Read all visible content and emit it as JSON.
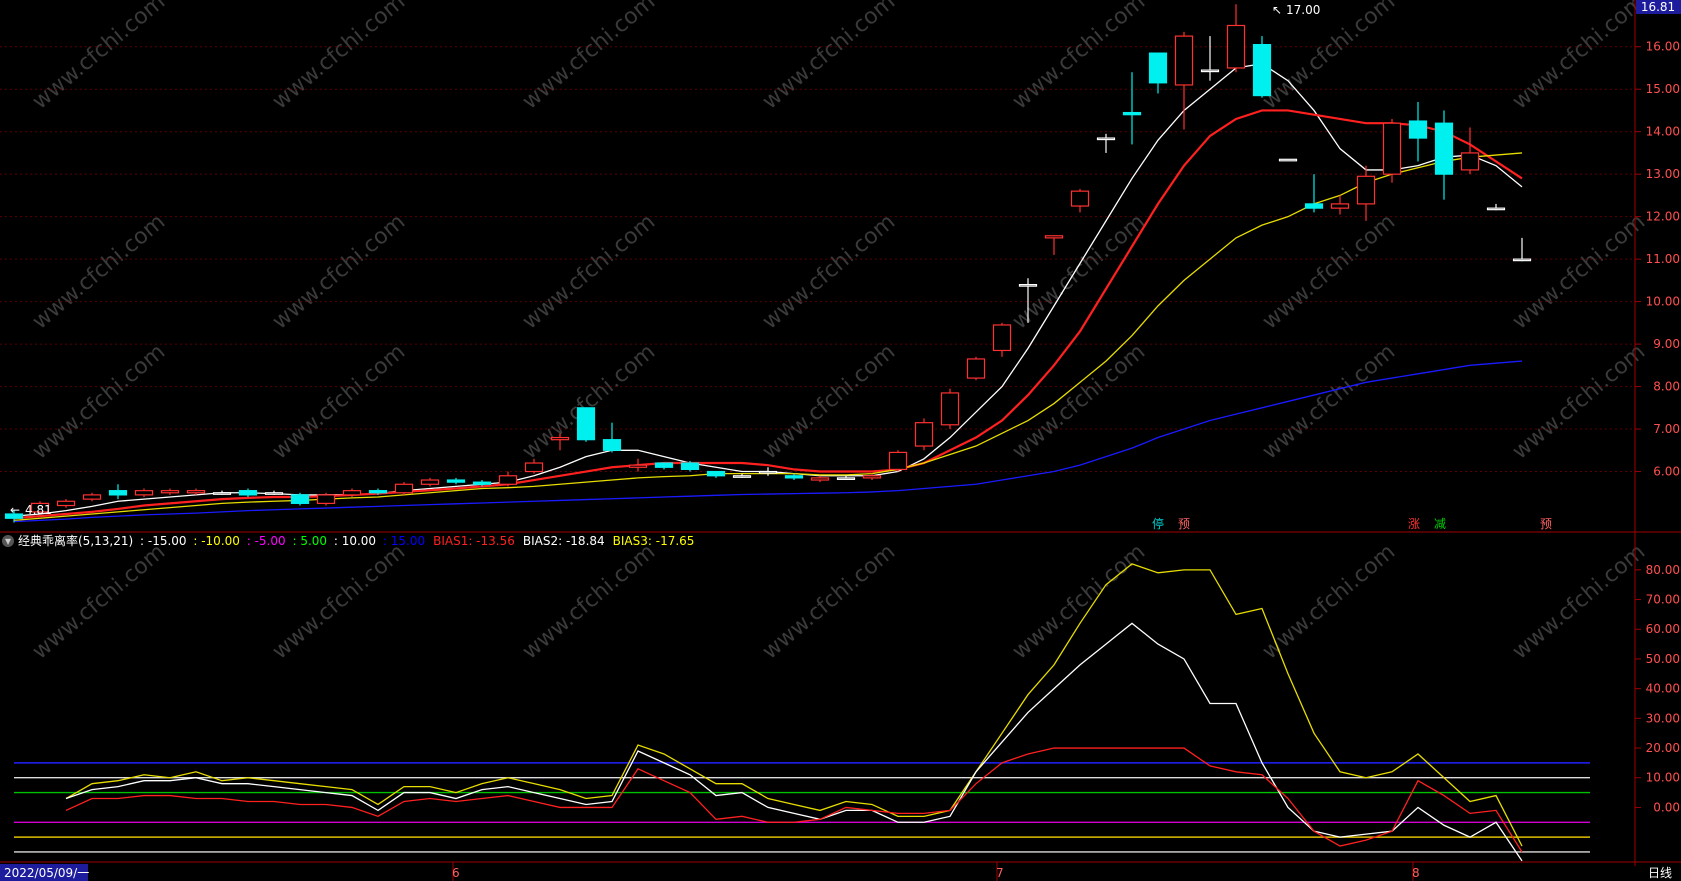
{
  "price_panel": {
    "axis_ticks": [
      "16.00",
      "15.00",
      "14.00",
      "13.00",
      "12.00",
      "11.00",
      "10.00",
      "9.00",
      "8.00",
      "7.00",
      "6.00"
    ],
    "current_price_label": "16.81",
    "high_annotation": "17.00",
    "low_annotation": "4.81",
    "signal_markers": [
      "停",
      "预",
      "涨",
      "减",
      "预"
    ]
  },
  "indicator_panel": {
    "title": "经典乖离率(5,13,21)",
    "levels_text": [
      {
        "label": ": -15.00",
        "color": "#ffffff"
      },
      {
        "label": ": -10.00",
        "color": "#ffff00"
      },
      {
        "label": ": -5.00",
        "color": "#ff00ff"
      },
      {
        "label": ": 5.00",
        "color": "#00ff00"
      },
      {
        "label": ": 10.00",
        "color": "#ffffff"
      },
      {
        "label": ": 15.00",
        "color": "#0000ff"
      }
    ],
    "bias_values": [
      {
        "label": "BIAS1: -13.56",
        "color": "#ff2020"
      },
      {
        "label": "BIAS2: -18.84",
        "color": "#ffffff"
      },
      {
        "label": "BIAS3: -17.65",
        "color": "#ffff00"
      }
    ],
    "axis_ticks": [
      "80.00",
      "70.00",
      "60.00",
      "50.00",
      "40.00",
      "30.00",
      "20.00",
      "10.00",
      "0.00"
    ]
  },
  "date_axis": {
    "start_label": "2022/05/09/一",
    "month_labels": [
      "6",
      "7",
      "8"
    ],
    "period_label": "日线"
  },
  "watermark": "www.cfchi.com",
  "chart_data": [
    {
      "type": "candlestick",
      "title": "",
      "ylim": [
        4.6,
        17.1
      ],
      "candles": [
        [
          5.0,
          4.9,
          5.1,
          4.8
        ],
        [
          5.05,
          5.25,
          5.3,
          5.0
        ],
        [
          5.2,
          5.3,
          5.35,
          5.15
        ],
        [
          5.35,
          5.45,
          5.5,
          5.3
        ],
        [
          5.55,
          5.45,
          5.7,
          5.35
        ],
        [
          5.45,
          5.55,
          5.6,
          5.4
        ],
        [
          5.5,
          5.55,
          5.6,
          5.45
        ],
        [
          5.5,
          5.55,
          5.6,
          5.45
        ],
        [
          5.5,
          5.5,
          5.55,
          5.45
        ],
        [
          5.55,
          5.45,
          5.6,
          5.4
        ],
        [
          5.5,
          5.5,
          5.55,
          5.45
        ],
        [
          5.45,
          5.25,
          5.5,
          5.2
        ],
        [
          5.25,
          5.45,
          5.5,
          5.2
        ],
        [
          5.45,
          5.55,
          5.6,
          5.4
        ],
        [
          5.55,
          5.5,
          5.6,
          5.45
        ],
        [
          5.5,
          5.7,
          5.75,
          5.45
        ],
        [
          5.7,
          5.8,
          5.85,
          5.65
        ],
        [
          5.8,
          5.75,
          5.85,
          5.7
        ],
        [
          5.75,
          5.7,
          5.8,
          5.65
        ],
        [
          5.7,
          5.9,
          6.0,
          5.65
        ],
        [
          6.0,
          6.2,
          6.3,
          5.95
        ],
        [
          6.75,
          6.8,
          6.9,
          6.5
        ],
        [
          7.5,
          6.75,
          7.5,
          6.7
        ],
        [
          6.75,
          6.5,
          7.15,
          6.45
        ],
        [
          6.1,
          6.15,
          6.3,
          6.0
        ],
        [
          6.2,
          6.1,
          6.2,
          6.05
        ],
        [
          6.2,
          6.05,
          6.25,
          6.0
        ],
        [
          6.0,
          5.9,
          6.0,
          5.85
        ],
        [
          5.9,
          5.9,
          5.95,
          5.85
        ],
        [
          6.0,
          6.0,
          6.1,
          5.9
        ],
        [
          5.9,
          5.85,
          5.95,
          5.8
        ],
        [
          5.8,
          5.85,
          5.9,
          5.75
        ],
        [
          5.85,
          5.85,
          5.9,
          5.8
        ],
        [
          5.85,
          5.9,
          5.95,
          5.8
        ],
        [
          6.05,
          6.45,
          6.5,
          6.0
        ],
        [
          6.6,
          7.15,
          7.25,
          6.5
        ],
        [
          7.1,
          7.85,
          7.95,
          7.0
        ],
        [
          8.2,
          8.65,
          8.7,
          8.15
        ],
        [
          8.85,
          9.45,
          9.5,
          8.7
        ],
        [
          10.4,
          10.4,
          10.55,
          9.5
        ],
        [
          11.5,
          11.55,
          11.55,
          11.1
        ],
        [
          12.25,
          12.6,
          12.65,
          12.1
        ],
        [
          13.85,
          13.85,
          13.95,
          13.5
        ],
        [
          14.45,
          14.4,
          15.4,
          13.7
        ],
        [
          15.85,
          15.15,
          15.85,
          14.9
        ],
        [
          15.1,
          16.25,
          16.35,
          14.05
        ],
        [
          15.45,
          15.45,
          16.25,
          15.2
        ],
        [
          15.5,
          16.5,
          17.0,
          15.4
        ],
        [
          16.05,
          14.85,
          16.25,
          14.8
        ],
        [
          13.35,
          13.35,
          13.35,
          13.35
        ],
        [
          12.3,
          12.2,
          13.0,
          12.1
        ],
        [
          12.2,
          12.3,
          12.5,
          12.05
        ],
        [
          12.3,
          12.95,
          13.2,
          11.9
        ],
        [
          13.0,
          14.2,
          14.3,
          12.8
        ],
        [
          14.25,
          13.85,
          14.7,
          13.3
        ],
        [
          14.2,
          13.0,
          14.5,
          12.4
        ],
        [
          13.1,
          13.5,
          14.1,
          13.0
        ],
        [
          12.2,
          12.2,
          12.3,
          12.15
        ],
        [
          11.0,
          11.0,
          11.5,
          10.95
        ]
      ],
      "ma_series": [
        {
          "color": "#ffffff",
          "values": [
            4.95,
            5.0,
            5.08,
            5.18,
            5.3,
            5.35,
            5.4,
            5.45,
            5.5,
            5.5,
            5.48,
            5.45,
            5.45,
            5.46,
            5.48,
            5.55,
            5.6,
            5.65,
            5.7,
            5.75,
            5.9,
            6.1,
            6.35,
            6.5,
            6.5,
            6.35,
            6.2,
            6.1,
            6.0,
            6.0,
            5.95,
            5.9,
            5.9,
            5.9,
            6.0,
            6.3,
            6.8,
            7.4,
            8.0,
            8.9,
            9.9,
            10.9,
            11.9,
            12.9,
            13.8,
            14.5,
            15.0,
            15.5,
            15.6,
            15.2,
            14.5,
            13.6,
            13.1,
            13.1,
            13.2,
            13.4,
            13.45,
            13.2,
            12.7
          ]
        },
        {
          "color": "#ff2020",
          "values": [
            4.9,
            4.95,
            5.0,
            5.05,
            5.12,
            5.2,
            5.25,
            5.3,
            5.35,
            5.38,
            5.4,
            5.4,
            5.42,
            5.45,
            5.48,
            5.52,
            5.56,
            5.6,
            5.65,
            5.7,
            5.8,
            5.9,
            6.0,
            6.1,
            6.15,
            6.2,
            6.2,
            6.2,
            6.2,
            6.15,
            6.05,
            6.0,
            6.0,
            6.0,
            6.05,
            6.2,
            6.5,
            6.8,
            7.2,
            7.8,
            8.5,
            9.3,
            10.3,
            11.3,
            12.3,
            13.2,
            13.9,
            14.3,
            14.5,
            14.5,
            14.4,
            14.3,
            14.2,
            14.2,
            14.15,
            14.0,
            13.7,
            13.3,
            12.9
          ]
        },
        {
          "color": "#e6dc00",
          "values": [
            4.85,
            4.9,
            4.95,
            5.0,
            5.05,
            5.1,
            5.15,
            5.2,
            5.25,
            5.28,
            5.3,
            5.32,
            5.35,
            5.38,
            5.4,
            5.45,
            5.5,
            5.55,
            5.6,
            5.62,
            5.65,
            5.7,
            5.75,
            5.8,
            5.85,
            5.88,
            5.9,
            5.95,
            5.95,
            5.95,
            5.95,
            5.92,
            5.92,
            5.95,
            6.05,
            6.2,
            6.4,
            6.6,
            6.9,
            7.2,
            7.6,
            8.1,
            8.6,
            9.2,
            9.9,
            10.5,
            11.0,
            11.5,
            11.8,
            12.0,
            12.3,
            12.5,
            12.8,
            13.0,
            13.15,
            13.3,
            13.4,
            13.45,
            13.5
          ]
        },
        {
          "color": "#1a1aff",
          "values": [
            4.82,
            4.85,
            4.88,
            4.92,
            4.95,
            4.98,
            5.0,
            5.02,
            5.05,
            5.08,
            5.1,
            5.12,
            5.14,
            5.16,
            5.18,
            5.2,
            5.22,
            5.24,
            5.26,
            5.28,
            5.3,
            5.32,
            5.34,
            5.36,
            5.38,
            5.4,
            5.42,
            5.44,
            5.46,
            5.47,
            5.48,
            5.49,
            5.5,
            5.52,
            5.55,
            5.6,
            5.65,
            5.7,
            5.8,
            5.9,
            6.0,
            6.15,
            6.35,
            6.55,
            6.8,
            7.0,
            7.2,
            7.35,
            7.5,
            7.65,
            7.8,
            7.95,
            8.1,
            8.2,
            8.3,
            8.4,
            8.5,
            8.55,
            8.6
          ]
        }
      ]
    },
    {
      "type": "line",
      "title": "经典乖离率(5,13,21)",
      "ylim": [
        -17.7,
        85
      ],
      "reference_lines": [
        {
          "value": 15,
          "color": "#2020ff"
        },
        {
          "value": 10,
          "color": "#dddddd"
        },
        {
          "value": 5,
          "color": "#00c000"
        },
        {
          "value": -5,
          "color": "#d000d0"
        },
        {
          "value": -10,
          "color": "#e0c000"
        },
        {
          "value": -15,
          "color": "#dddddd"
        }
      ],
      "series": [
        {
          "color": "#e6dc00",
          "values": [
            3,
            8,
            9,
            11,
            10,
            12,
            9,
            10,
            9,
            8,
            7,
            6,
            1,
            7,
            7,
            5,
            8,
            10,
            8,
            6,
            3,
            4,
            21,
            18,
            13,
            8,
            8,
            3,
            1,
            -1,
            2,
            1,
            -3,
            -3,
            -1,
            12,
            25,
            38,
            48,
            62,
            75,
            82,
            79,
            80,
            80,
            65,
            67,
            45,
            25,
            12,
            10,
            12,
            18,
            10,
            2,
            4,
            -13
          ]
        },
        {
          "color": "#ffffff",
          "values": [
            3,
            6,
            7,
            9,
            9,
            10,
            8,
            8,
            7,
            6,
            5,
            4,
            -1,
            5,
            5,
            3,
            6,
            7,
            5,
            3,
            1,
            2,
            19,
            15,
            11,
            4,
            5,
            0,
            -2,
            -4,
            -1,
            -1,
            -5,
            -5,
            -3,
            12,
            22,
            32,
            40,
            48,
            55,
            62,
            55,
            50,
            35,
            35,
            15,
            0,
            -8,
            -10,
            -9,
            -8,
            0,
            -6,
            -10,
            -5,
            -18
          ]
        },
        {
          "color": "#ff2020",
          "values": [
            -1,
            3,
            3,
            4,
            4,
            3,
            3,
            2,
            2,
            1,
            1,
            0,
            -3,
            2,
            3,
            2,
            3,
            4,
            2,
            0,
            0,
            0,
            13,
            9,
            5,
            -4,
            -3,
            -5,
            -5,
            -4,
            0,
            -1,
            -2,
            -2,
            -1,
            8,
            15,
            18,
            20,
            20,
            20,
            20,
            20,
            20,
            14,
            12,
            11,
            3,
            -8,
            -13,
            -11,
            -8,
            9,
            4,
            -2,
            -1,
            -15
          ]
        }
      ]
    }
  ]
}
